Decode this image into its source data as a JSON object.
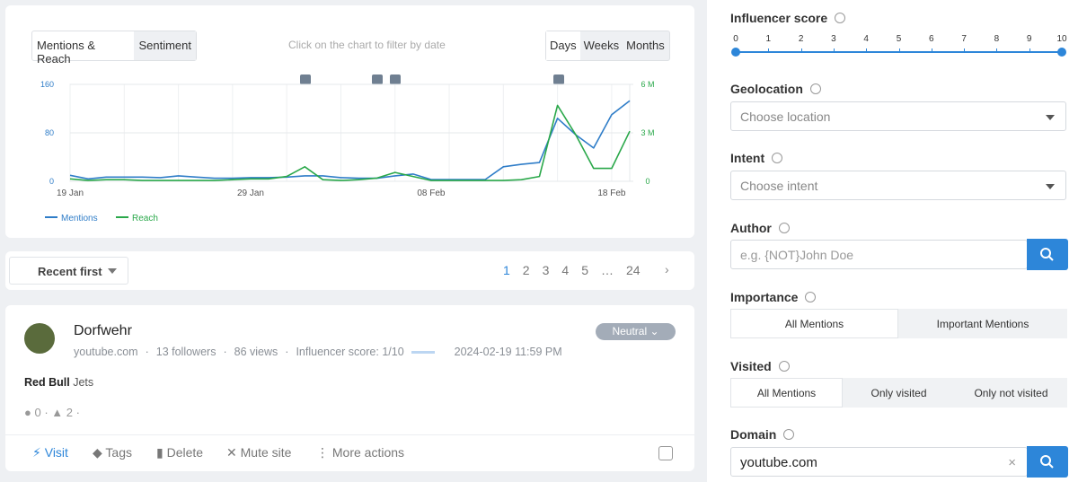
{
  "toolbar": {
    "tabs": [
      "Mentions & Reach",
      "Sentiment"
    ],
    "hint": "Click on the chart to filter by date",
    "periods": [
      "Days",
      "Weeks",
      "Months"
    ]
  },
  "chart_data": {
    "type": "line",
    "categories": [
      "19 Jan",
      null,
      null,
      null,
      null,
      null,
      null,
      null,
      null,
      null,
      "29 Jan",
      null,
      null,
      null,
      null,
      null,
      null,
      null,
      null,
      null,
      "08 Feb",
      null,
      null,
      null,
      null,
      null,
      null,
      null,
      null,
      null,
      "18 Feb",
      null
    ],
    "series": [
      {
        "name": "Mentions",
        "color": "#2f7dc8",
        "values": [
          10,
          4,
          7,
          7,
          7,
          6,
          9,
          7,
          5,
          5,
          6,
          6,
          7,
          9,
          9,
          6,
          5,
          5,
          9,
          12,
          3,
          3,
          3,
          3,
          24,
          28,
          31,
          104,
          77,
          55,
          110,
          133
        ]
      },
      {
        "name": "Reach",
        "color": "#2aa84a",
        "axis": "y2",
        "values": [
          150000,
          50000,
          100000,
          100000,
          50000,
          50000,
          50000,
          50000,
          50000,
          100000,
          150000,
          150000,
          300000,
          900000,
          100000,
          50000,
          100000,
          200000,
          550000,
          300000,
          50000,
          50000,
          50000,
          50000,
          50000,
          100000,
          300000,
          4700000,
          2900000,
          800000,
          800000,
          3100000
        ]
      }
    ],
    "ylim": [
      0,
      160
    ],
    "yticks": [
      0,
      80,
      160
    ],
    "y2lim": [
      0,
      6000000
    ],
    "y2ticks": [
      0,
      {
        "value": 3000000,
        "label": "3 M"
      },
      {
        "value": 6000000,
        "label": "6 M"
      }
    ],
    "grid": true,
    "legend": "bottom-left"
  },
  "sort": "Recent first",
  "pagination": [
    "1",
    "2",
    "3",
    "4",
    "5",
    "…",
    "24"
  ],
  "mention": {
    "author": "Dorfwehr",
    "meta": [
      "youtube.com",
      "13 followers",
      "86 views",
      "Influencer score: 1/10",
      "2024-02-19 11:59 PM"
    ],
    "sentiment": "Neutral",
    "text_bold": "Red Bull",
    "text": "Jets",
    "comments": "0",
    "likes": "2",
    "actions": [
      "Visit",
      "Tags",
      "Delete",
      "Mute site",
      "More actions"
    ]
  },
  "filters": {
    "influencer_score": {
      "label": "Influencer score",
      "ticks": [
        "0",
        "1",
        "2",
        "3",
        "4",
        "5",
        "6",
        "7",
        "8",
        "9",
        "10"
      ]
    },
    "geolocation": {
      "label": "Geolocation",
      "placeholder": "Choose location"
    },
    "intent": {
      "label": "Intent",
      "placeholder": "Choose intent"
    },
    "author": {
      "label": "Author",
      "placeholder": "e.g. {NOT}John Doe"
    },
    "importance": {
      "label": "Importance",
      "options": [
        "All Mentions",
        "Important Mentions"
      ]
    },
    "visited": {
      "label": "Visited",
      "options": [
        "All Mentions",
        "Only visited",
        "Only not visited"
      ]
    },
    "domain": {
      "label": "Domain",
      "value": "youtube.com"
    }
  }
}
